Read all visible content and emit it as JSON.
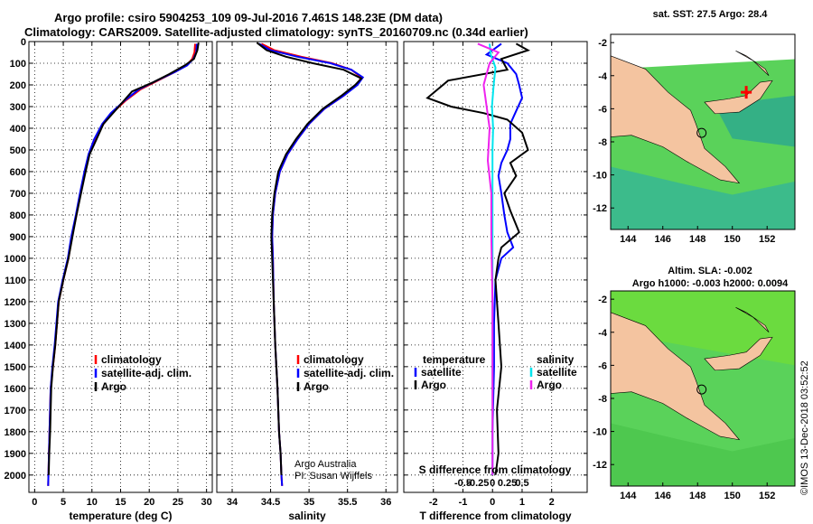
{
  "header": {
    "title_line1": "Argo profile: csiro 5904253_109 09-Jul-2016 7.461S 148.23E (DM data)",
    "title_line2": "Climatology: CARS2009. Satellite-adjusted climatology: synTS_20160709.nc (0.34d earlier)"
  },
  "colors": {
    "climatology": "#ff0000",
    "satellite": "#0000ff",
    "argo": "#000000",
    "sal_satellite": "#00e5ee",
    "sal_argo": "#ee22ee",
    "land": "#f4c4a0",
    "ocean": "#5ad25a"
  },
  "credits": {
    "line1": "Argo Australia",
    "line2": "PI: Susan Wijffels"
  },
  "timestamp": "©IMOS 13-Dec-2018 03:52:52",
  "chart_data": [
    {
      "id": "temperature",
      "type": "line",
      "xlabel": "temperature (deg C)",
      "ylabel": "",
      "xlim": [
        -1,
        31
      ],
      "ylim": [
        2080,
        0
      ],
      "xticks": [
        0,
        5,
        10,
        15,
        20,
        25,
        30
      ],
      "yticks": [
        0,
        100,
        200,
        300,
        400,
        500,
        600,
        700,
        800,
        900,
        1000,
        1100,
        1200,
        1300,
        1400,
        1500,
        1600,
        1700,
        1800,
        1900,
        2000
      ],
      "legend": [
        "climatology",
        "satellite-adj. clim.",
        "Argo"
      ],
      "series": [
        {
          "name": "climatology",
          "color": "#ff0000",
          "x": [
            28.0,
            27.9,
            27.5,
            26.5,
            24.5,
            21.5,
            18.5,
            16.0,
            13.5,
            12.0,
            10.5,
            9.5,
            8.8,
            8.0,
            7.3,
            6.5,
            5.9,
            5.0,
            4.2,
            3.6,
            3.2,
            2.8,
            2.6,
            2.5,
            2.4,
            2.35
          ],
          "y": [
            10,
            50,
            80,
            110,
            140,
            180,
            220,
            270,
            330,
            380,
            450,
            520,
            600,
            700,
            800,
            900,
            1000,
            1100,
            1200,
            1400,
            1500,
            1600,
            1800,
            1900,
            2000,
            2050
          ]
        },
        {
          "name": "satellite-adj. clim.",
          "color": "#0000ff",
          "x": [
            28.3,
            28.2,
            27.7,
            26.6,
            24.5,
            21.3,
            18.2,
            15.8,
            13.3,
            11.8,
            10.4,
            9.4,
            8.7,
            7.9,
            7.2,
            6.4,
            5.8,
            4.9,
            4.1,
            3.5,
            3.1,
            2.8,
            2.6,
            2.5,
            2.4,
            2.35
          ],
          "y": [
            10,
            50,
            80,
            110,
            140,
            180,
            220,
            270,
            330,
            380,
            450,
            520,
            600,
            700,
            800,
            900,
            1000,
            1100,
            1200,
            1400,
            1500,
            1600,
            1800,
            1900,
            2000,
            2050
          ]
        },
        {
          "name": "Argo",
          "color": "#000000",
          "x": [
            28.6,
            28.4,
            27.8,
            26.2,
            23.5,
            20.5,
            17.0,
            16.0,
            14.0,
            12.0,
            10.8,
            9.6,
            8.9,
            8.1,
            7.3,
            6.6,
            5.9,
            5.0,
            4.2,
            3.6,
            3.2,
            2.9,
            2.7,
            2.55,
            2.45
          ],
          "y": [
            5,
            40,
            80,
            110,
            150,
            190,
            230,
            260,
            320,
            380,
            450,
            520,
            600,
            700,
            800,
            900,
            1000,
            1100,
            1200,
            1400,
            1500,
            1600,
            1800,
            1900,
            2000
          ]
        }
      ]
    },
    {
      "id": "salinity",
      "type": "line",
      "xlabel": "salinity",
      "ylabel": "",
      "xlim": [
        33.8,
        36.15
      ],
      "ylim": [
        2080,
        0
      ],
      "xticks": [
        34,
        34.5,
        35,
        35.5,
        36
      ],
      "legend": [
        "climatology",
        "satellite-adj. clim.",
        "Argo"
      ],
      "series": [
        {
          "name": "climatology",
          "color": "#ff0000",
          "x": [
            34.38,
            34.55,
            34.9,
            35.3,
            35.55,
            35.68,
            35.62,
            35.45,
            35.2,
            35.0,
            34.85,
            34.72,
            34.62,
            34.56,
            34.53,
            34.52,
            34.53,
            34.54,
            34.56,
            34.59,
            34.61,
            34.63,
            34.64,
            34.65
          ],
          "y": [
            10,
            40,
            70,
            100,
            130,
            165,
            200,
            250,
            310,
            380,
            450,
            520,
            600,
            700,
            800,
            900,
            1000,
            1200,
            1400,
            1600,
            1800,
            1900,
            2000,
            2050
          ]
        },
        {
          "name": "satellite-adj. clim.",
          "color": "#0000ff",
          "x": [
            34.35,
            34.5,
            34.85,
            35.28,
            35.55,
            35.7,
            35.63,
            35.45,
            35.2,
            35.0,
            34.85,
            34.72,
            34.62,
            34.56,
            34.53,
            34.52,
            34.53,
            34.54,
            34.56,
            34.59,
            34.61,
            34.63,
            34.64,
            34.65
          ],
          "y": [
            10,
            40,
            70,
            100,
            130,
            165,
            200,
            250,
            310,
            380,
            450,
            520,
            600,
            700,
            800,
            900,
            1000,
            1200,
            1400,
            1600,
            1800,
            1900,
            2000,
            2050
          ]
        },
        {
          "name": "Argo",
          "color": "#000000",
          "x": [
            34.32,
            34.45,
            34.7,
            35.05,
            35.45,
            35.68,
            35.6,
            35.42,
            35.18,
            34.98,
            34.83,
            34.7,
            34.6,
            34.55,
            34.52,
            34.51,
            34.52,
            34.54,
            34.56,
            34.59,
            34.61,
            34.63,
            34.64
          ],
          "y": [
            5,
            40,
            70,
            100,
            130,
            170,
            200,
            250,
            310,
            380,
            450,
            520,
            600,
            700,
            800,
            900,
            1000,
            1200,
            1400,
            1600,
            1800,
            1900,
            2000
          ]
        }
      ]
    },
    {
      "id": "difference",
      "type": "line",
      "xlabel": "T difference from climatology",
      "xlabel_top": "S difference from climatology",
      "xlim": [
        -3,
        3.2
      ],
      "ylim": [
        2080,
        0
      ],
      "xticks": [
        -2,
        -1,
        0,
        1,
        2
      ],
      "xticks_top": [
        -0.5,
        -0.25,
        0,
        0.25,
        0.5
      ],
      "legend_left_title": "temperature",
      "legend_right_title": "salinity",
      "legend_left": [
        "satellite",
        "Argo"
      ],
      "legend_right": [
        "satellite",
        "Argo"
      ],
      "series": [
        {
          "name": "T satellite",
          "color": "#0000ff",
          "x": [
            0.3,
            -0.2,
            0.5,
            0.8,
            0.9,
            1.0,
            0.8,
            0.6,
            0.6,
            0.5,
            0.3,
            0.2,
            0.3,
            0.4,
            0.5,
            0.7,
            0.3,
            0.1,
            0.05,
            0.05,
            0.0,
            0.0
          ],
          "y": [
            10,
            60,
            100,
            150,
            200,
            260,
            320,
            380,
            450,
            500,
            560,
            620,
            700,
            800,
            880,
            950,
            1000,
            1100,
            1300,
            1500,
            1800,
            2000
          ]
        },
        {
          "name": "T Argo",
          "color": "#000000",
          "x": [
            0.8,
            1.2,
            0.3,
            0.5,
            -1.5,
            -2.2,
            -1.4,
            -0.3,
            0.5,
            1.0,
            1.2,
            0.6,
            0.8,
            0.4,
            0.6,
            0.9,
            0.3,
            0.2,
            0.1,
            0.2,
            0.3,
            0.15,
            0.2,
            0.1
          ],
          "y": [
            10,
            40,
            80,
            130,
            180,
            260,
            300,
            330,
            360,
            420,
            500,
            560,
            620,
            700,
            780,
            880,
            950,
            1000,
            1100,
            1300,
            1500,
            1700,
            1900,
            2000
          ]
        },
        {
          "name": "S satellite",
          "color": "#00e5ee",
          "x": [
            -0.05,
            -0.03,
            0.05,
            0.02,
            -0.01,
            0.01,
            0.0,
            0.0,
            0.0,
            0.0,
            0.0
          ],
          "y": [
            10,
            60,
            120,
            200,
            300,
            400,
            500,
            700,
            1000,
            1500,
            2000
          ]
        },
        {
          "name": "S Argo",
          "color": "#ee22ee",
          "x": [
            -0.25,
            0.1,
            -0.05,
            -0.15,
            -0.1,
            -0.05,
            -0.08,
            -0.02,
            -0.02,
            0.0,
            0.0,
            0.0
          ],
          "y": [
            10,
            50,
            100,
            200,
            300,
            400,
            550,
            700,
            900,
            1200,
            1600,
            2000
          ]
        }
      ]
    }
  ],
  "maps": [
    {
      "id": "sst",
      "title": "sat. SST: 27.5 Argo: 28.4",
      "subtitle": "",
      "lon_ticks": [
        "144",
        "146",
        "148",
        "150",
        "152"
      ],
      "lat_ticks": [
        "-2",
        "-4",
        "-6",
        "-8",
        "-10",
        "-12"
      ]
    },
    {
      "id": "sla",
      "title": "Altim. SLA: -0.002",
      "subtitle": "Argo h1000: -0.003 h2000: 0.0094",
      "lon_ticks": [
        "144",
        "146",
        "148",
        "150",
        "152"
      ],
      "lat_ticks": [
        "-2",
        "-4",
        "-6",
        "-8",
        "-10",
        "-12"
      ]
    }
  ]
}
